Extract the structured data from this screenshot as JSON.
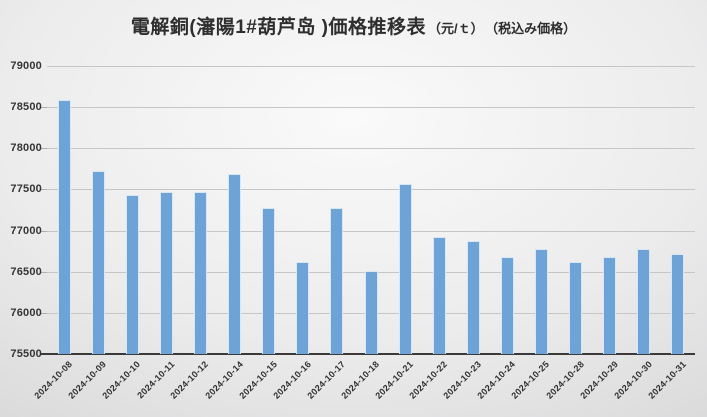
{
  "title": {
    "main": "電解銅(瀋陽1#葫芦岛 )価格推移表",
    "unit": "（元/ｔ）",
    "note": "（税込み価格）"
  },
  "chart_data": {
    "type": "bar",
    "title": "電解銅(瀋陽1#葫芦岛 )価格推移表（元/ｔ）（税込み価格）",
    "categories": [
      "2024-10-08",
      "2024-10-09",
      "2024-10-10",
      "2024-10-11",
      "2024-10-12",
      "2024-10-14",
      "2024-10-15",
      "2024-10-16",
      "2024-10-17",
      "2024-10-18",
      "2024-10-21",
      "2024-10-22",
      "2024-10-23",
      "2024-10-24",
      "2024-10-25",
      "2024-10-28",
      "2024-10-29",
      "2024-10-30",
      "2024-10-31"
    ],
    "values": [
      78590,
      77730,
      77430,
      77470,
      77470,
      77690,
      77270,
      76620,
      77270,
      76510,
      77570,
      76920,
      76870,
      76680,
      76780,
      76620,
      76680,
      76780,
      76720
    ],
    "xlabel": "",
    "ylabel": "",
    "ylim": [
      75500,
      79000
    ],
    "ytick_step": 500,
    "yticks": [
      75500,
      76000,
      76500,
      77000,
      77500,
      78000,
      78500,
      79000
    ],
    "grid": true,
    "legend": "none",
    "bar_color": "#6ea3d7",
    "bar_border_color": "#d9e6f3",
    "gridline_color": "#c6c6c7",
    "axis_color": "#3a3a3a"
  }
}
